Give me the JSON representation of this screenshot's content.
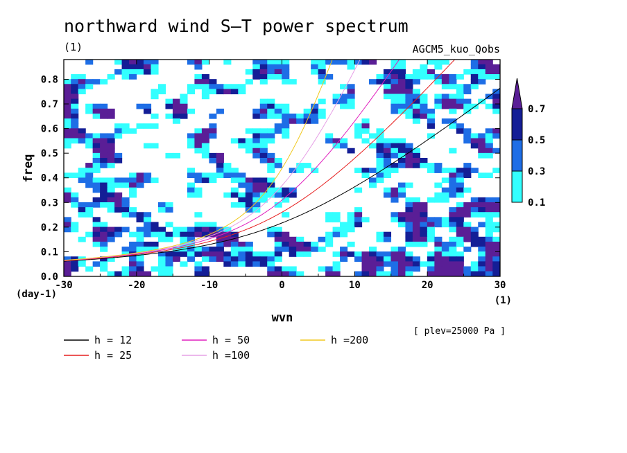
{
  "chart_data": {
    "type": "heatmap",
    "title": "northward wind S–T power spectrum",
    "subtitle_left": "(1)",
    "subtitle_right": "AGCM5_kuo_Qobs",
    "xlabel": "wvn",
    "ylabel": "freq",
    "x_unit": "(1)",
    "y_unit": "(day-1)",
    "xlim": [
      -30,
      30
    ],
    "ylim": [
      0,
      0.88
    ],
    "xticks": [
      "-30",
      "-20",
      "-10",
      "0",
      "10",
      "20",
      "30"
    ],
    "yticks": [
      "0.0",
      "0.1",
      "0.2",
      "0.3",
      "0.4",
      "0.5",
      "0.6",
      "0.7",
      "0.8"
    ],
    "colorbar": {
      "levels": [
        "0.1",
        "0.3",
        "0.5",
        "0.7"
      ],
      "colors": [
        "#33ffff",
        "#1e6ee6",
        "#141e96",
        "#5a1e96"
      ]
    },
    "curves": [
      {
        "name": "h = 12",
        "h": 12,
        "color": "#000000"
      },
      {
        "name": "h = 25",
        "h": 25,
        "color": "#e61e1e"
      },
      {
        "name": "h = 50",
        "h": 50,
        "color": "#e01ebe"
      },
      {
        "name": "h =100",
        "h": 100,
        "color": "#e6a0e6"
      },
      {
        "name": "h =200",
        "h": 200,
        "color": "#f0c81e"
      }
    ],
    "level_annotation": "[ plev=25000 Pa ]"
  }
}
